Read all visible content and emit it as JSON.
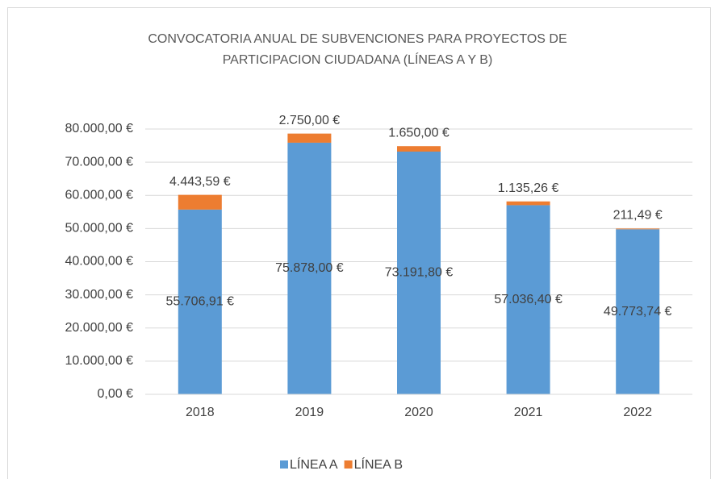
{
  "chart_data": {
    "type": "stacked_bar",
    "title": "CONVOCATORIA ANUAL DE SUBVENCIONES PARA PROYECTOS DE PARTICIPACION CIUDADANA (LÍNEAS A Y B)",
    "categories": [
      "2018",
      "2019",
      "2020",
      "2021",
      "2022"
    ],
    "series": [
      {
        "name": "LÍNEA A",
        "color": "#5b9bd5",
        "values": [
          55706.91,
          75878.0,
          73191.8,
          57036.4,
          49773.74
        ],
        "value_labels": [
          "55.706,91 €",
          "75.878,00 €",
          "73.191,80 €",
          "57.036,40 €",
          "49.773,74 €"
        ]
      },
      {
        "name": "LÍNEA B",
        "color": "#ed7d31",
        "values": [
          4443.59,
          2750.0,
          1650.0,
          1135.26,
          211.49
        ],
        "value_labels": [
          "4.443,59 €",
          "2.750,00 €",
          "1.650,00 €",
          "1.135,26 €",
          "211,49 €"
        ]
      }
    ],
    "ylim": [
      0,
      80000
    ],
    "yticks": [
      {
        "value": 0,
        "label": "0,00 €"
      },
      {
        "value": 10000,
        "label": "10.000,00 €"
      },
      {
        "value": 20000,
        "label": "20.000,00 €"
      },
      {
        "value": 30000,
        "label": "30.000,00 €"
      },
      {
        "value": 40000,
        "label": "40.000,00 €"
      },
      {
        "value": 50000,
        "label": "50.000,00 €"
      },
      {
        "value": 60000,
        "label": "60.000,00 €"
      },
      {
        "value": 70000,
        "label": "70.000,00 €"
      },
      {
        "value": 80000,
        "label": "80.000,00 €"
      }
    ],
    "grid": true,
    "legend": "bottom"
  }
}
